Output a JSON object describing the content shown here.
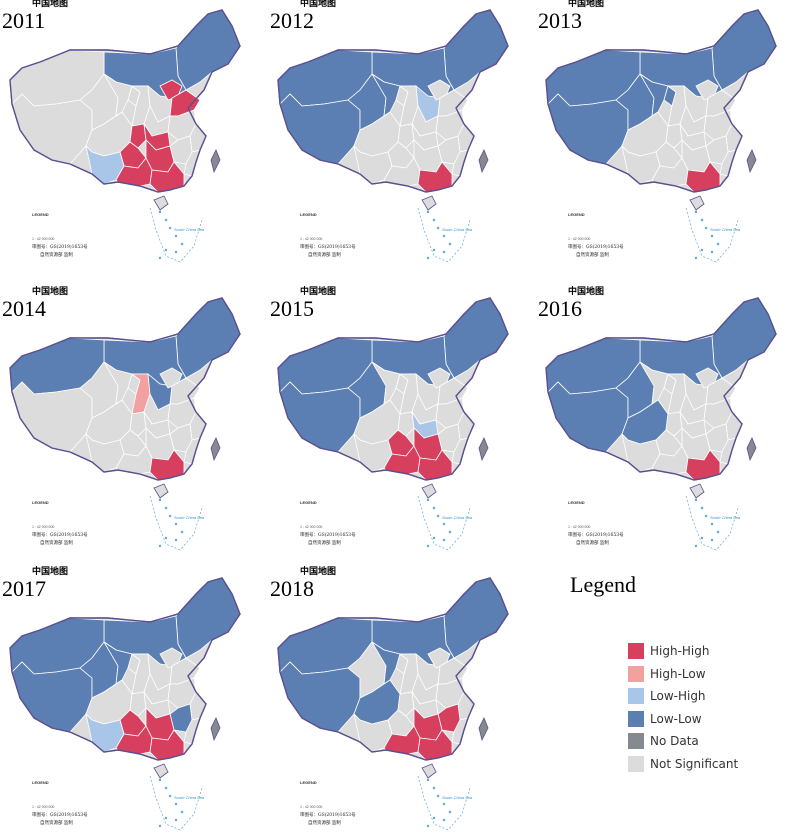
{
  "map_label": "中国地图",
  "panels": [
    {
      "year": "2011"
    },
    {
      "year": "2012"
    },
    {
      "year": "2013"
    },
    {
      "year": "2014"
    },
    {
      "year": "2015"
    },
    {
      "year": "2016"
    },
    {
      "year": "2017"
    },
    {
      "year": "2018"
    }
  ],
  "legend": {
    "title": "Legend",
    "items": [
      {
        "label": "High-High",
        "color": "#d6405e"
      },
      {
        "label": "High-Low",
        "color": "#f2a0a0"
      },
      {
        "label": "Low-High",
        "color": "#a9c6e8"
      },
      {
        "label": "Low-Low",
        "color": "#5b7fb3"
      },
      {
        "label": "No Data",
        "color": "#858a91"
      },
      {
        "label": "Not Significant",
        "color": "#dcdcdc"
      }
    ]
  },
  "map_footer": {
    "legend_heading": "LEGEND",
    "scale": "1 : 42 000 000",
    "approval_no": "审图号：GS(2019)1653号",
    "publisher": "自然资源部 监制",
    "sea_label": "South China Sea"
  }
}
